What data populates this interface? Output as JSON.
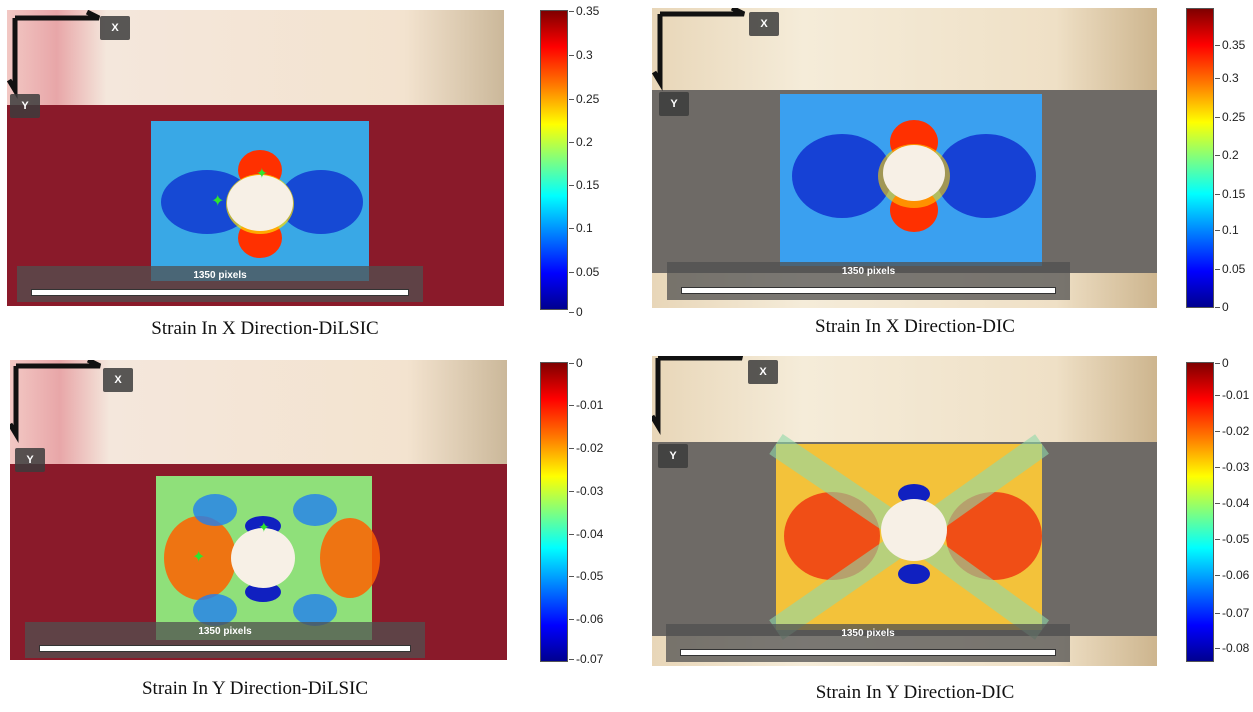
{
  "panels": [
    {
      "caption": "Strain In X Direction-DiLSIC",
      "axis_x": "X",
      "axis_y": "Y",
      "scale_label": "1350 pixels",
      "colorbar": [
        "0.35",
        "0.3",
        "0.25",
        "0.2",
        "0.15",
        "0.1",
        "0.05",
        "0"
      ]
    },
    {
      "caption": "Strain In X Direction-DIC",
      "axis_x": "X",
      "axis_y": "Y",
      "scale_label": "1350 pixels",
      "colorbar": [
        "0.35",
        "0.3",
        "0.25",
        "0.2",
        "0.15",
        "0.1",
        "0.05",
        "0"
      ]
    },
    {
      "caption": "Strain In Y Direction-DiLSIC",
      "axis_x": "X",
      "axis_y": "Y",
      "scale_label": "1350 pixels",
      "colorbar": [
        "0",
        "-0.01",
        "-0.02",
        "-0.03",
        "-0.04",
        "-0.05",
        "-0.06",
        "-0.07"
      ]
    },
    {
      "caption": "Strain In Y Direction-DIC",
      "axis_x": "X",
      "axis_y": "Y",
      "scale_label": "1350 pixels",
      "colorbar": [
        "0",
        "-0.01",
        "-0.02",
        "-0.03",
        "-0.04",
        "-0.05",
        "-0.06",
        "-0.07",
        "-0.08"
      ]
    }
  ],
  "colors": {
    "specimen_red": "#8a1a2a",
    "specimen_gray": "#6e6a66",
    "background_beige": "#e9dcc6",
    "marker_green": "#2fe52f"
  }
}
